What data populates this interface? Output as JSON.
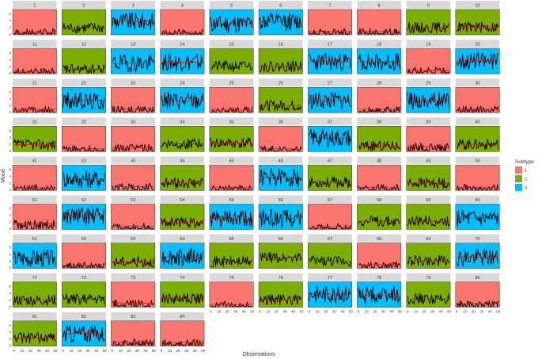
{
  "chart_data": {
    "type": "line",
    "xlabel": "Observations",
    "ylabel": "Mood",
    "x_range": [
      0,
      50
    ],
    "x_ticks": [
      0,
      10,
      20,
      30,
      40,
      50
    ],
    "y_range": [
      0,
      7
    ],
    "y_ticks": [
      0,
      2,
      4,
      6
    ],
    "ncol": 10,
    "legend": {
      "title": "Subtype",
      "placement": "right",
      "entries": [
        {
          "label": "1",
          "color": "#F8766D"
        },
        {
          "label": "2",
          "color": "#7CAE00"
        },
        {
          "label": "3",
          "color": "#00BFFF"
        }
      ]
    },
    "panel_subtypes": [
      1,
      2,
      3,
      1,
      3,
      3,
      1,
      1,
      2,
      2,
      1,
      2,
      3,
      3,
      2,
      2,
      3,
      3,
      1,
      3,
      1,
      3,
      1,
      3,
      1,
      2,
      3,
      1,
      3,
      1,
      2,
      1,
      1,
      2,
      2,
      1,
      3,
      2,
      1,
      2,
      1,
      3,
      1,
      2,
      1,
      3,
      2,
      1,
      2,
      1,
      1,
      3,
      1,
      2,
      3,
      3,
      1,
      2,
      2,
      3,
      3,
      1,
      2,
      3,
      2,
      2,
      2,
      1,
      2,
      3,
      2,
      2,
      1,
      2,
      1,
      2,
      3,
      3,
      2,
      1,
      2,
      3,
      1,
      1
    ],
    "panel_means": [
      0.6,
      1.8,
      3.8,
      0.5,
      3.0,
      3.6,
      0.7,
      0.7,
      1.9,
      2.0,
      0.5,
      1.0,
      2.9,
      3.2,
      2.0,
      1.9,
      3.3,
      3.3,
      0.8,
      3.6,
      0.7,
      3.3,
      0.8,
      3.3,
      0.6,
      1.9,
      3.3,
      0.8,
      3.4,
      0.7,
      1.8,
      0.6,
      0.9,
      2.1,
      2.3,
      0.6,
      3.8,
      1.4,
      1.3,
      1.9,
      0.6,
      3.2,
      0.9,
      2.0,
      0.6,
      3.6,
      2.2,
      0.6,
      2.0,
      0.6,
      1.5,
      3.8,
      0.7,
      1.9,
      2.8,
      3.0,
      0.5,
      2.2,
      2.2,
      3.0,
      2.9,
      0.6,
      1.7,
      3.2,
      1.8,
      2.9,
      1.9,
      0.7,
      2.0,
      3.0,
      1.8,
      2.1,
      1.0,
      2.3,
      0.6,
      2.0,
      3.7,
      3.4,
      2.2,
      0.8,
      2.2,
      3.5,
      0.9,
      0.8
    ],
    "observations_per_panel": 50
  }
}
